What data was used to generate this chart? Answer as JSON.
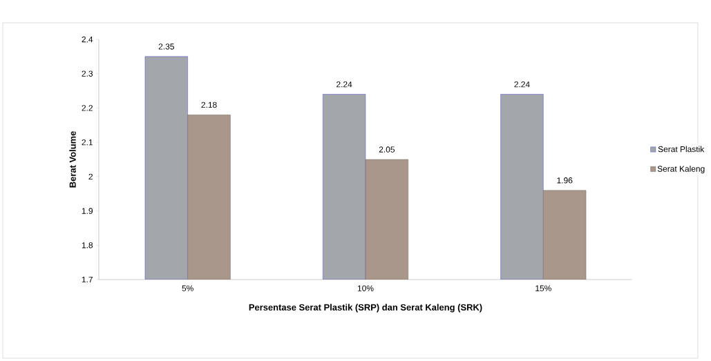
{
  "chart_data": {
    "type": "bar",
    "xlabel": "Persentase Serat Plastik (SRP) dan Serat Kaleng (SRK)",
    "ylabel": "Berat Volume",
    "categories": [
      "5%",
      "10%",
      "15%"
    ],
    "series": [
      {
        "name": "Serat Plastik",
        "color": "#a3a6aa",
        "values": [
          2.35,
          2.24,
          2.24
        ]
      },
      {
        "name": "Serat Kaleng",
        "color": "#a8978a",
        "values": [
          2.18,
          2.05,
          1.96
        ]
      }
    ],
    "ylim": [
      1.7,
      2.4
    ],
    "yticks": [
      1.7,
      1.8,
      1.9,
      2,
      2.1,
      2.2,
      2.3,
      2.4
    ],
    "grid": false,
    "legend": "right",
    "data_labels": true
  }
}
